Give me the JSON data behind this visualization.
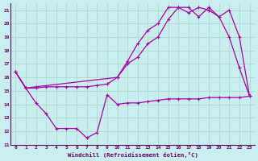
{
  "xlabel": "Windchill (Refroidissement éolien,°C)",
  "background_color": "#c8eef0",
  "grid_color": "#aaddcc",
  "line_color": "#aa00aa",
  "xlim": [
    -0.5,
    23.5
  ],
  "ylim": [
    11,
    21.5
  ],
  "yticks": [
    11,
    12,
    13,
    14,
    15,
    16,
    17,
    18,
    19,
    20,
    21
  ],
  "xticks": [
    0,
    1,
    2,
    3,
    4,
    5,
    6,
    7,
    8,
    9,
    10,
    11,
    12,
    13,
    14,
    15,
    16,
    17,
    18,
    19,
    20,
    21,
    22,
    23
  ],
  "series": [
    {
      "x": [
        0,
        1,
        2,
        3,
        4,
        5,
        6,
        7,
        8,
        9,
        10,
        11,
        12,
        13,
        14,
        15,
        16,
        17,
        18,
        19,
        20,
        21,
        22,
        23
      ],
      "y": [
        16.4,
        15.2,
        14.1,
        13.3,
        12.2,
        12.2,
        12.2,
        11.5,
        11.9,
        14.7,
        14.0,
        14.1,
        14.1,
        14.2,
        14.3,
        14.4,
        14.4,
        14.4,
        14.4,
        14.5,
        14.5,
        14.5,
        14.5,
        14.6
      ]
    },
    {
      "x": [
        0,
        1,
        2,
        3,
        4,
        5,
        6,
        7,
        8,
        9,
        10,
        11,
        12,
        13,
        14,
        15,
        16,
        17,
        18,
        19,
        20,
        21,
        22,
        23
      ],
      "y": [
        16.4,
        15.2,
        15.2,
        15.3,
        15.3,
        15.3,
        15.3,
        15.3,
        15.4,
        15.5,
        16.0,
        17.0,
        17.5,
        18.5,
        19.0,
        20.3,
        21.2,
        21.2,
        20.5,
        21.2,
        20.5,
        19.0,
        16.7,
        14.6
      ]
    },
    {
      "x": [
        0,
        1,
        2,
        10,
        11,
        12,
        13,
        14,
        15,
        16,
        17,
        18,
        19,
        20,
        21,
        22,
        23
      ],
      "y": [
        16.4,
        15.2,
        15.3,
        16.0,
        17.2,
        18.5,
        19.5,
        20.0,
        21.2,
        21.2,
        20.8,
        21.2,
        21.0,
        20.5,
        21.0,
        19.0,
        14.6
      ]
    }
  ]
}
